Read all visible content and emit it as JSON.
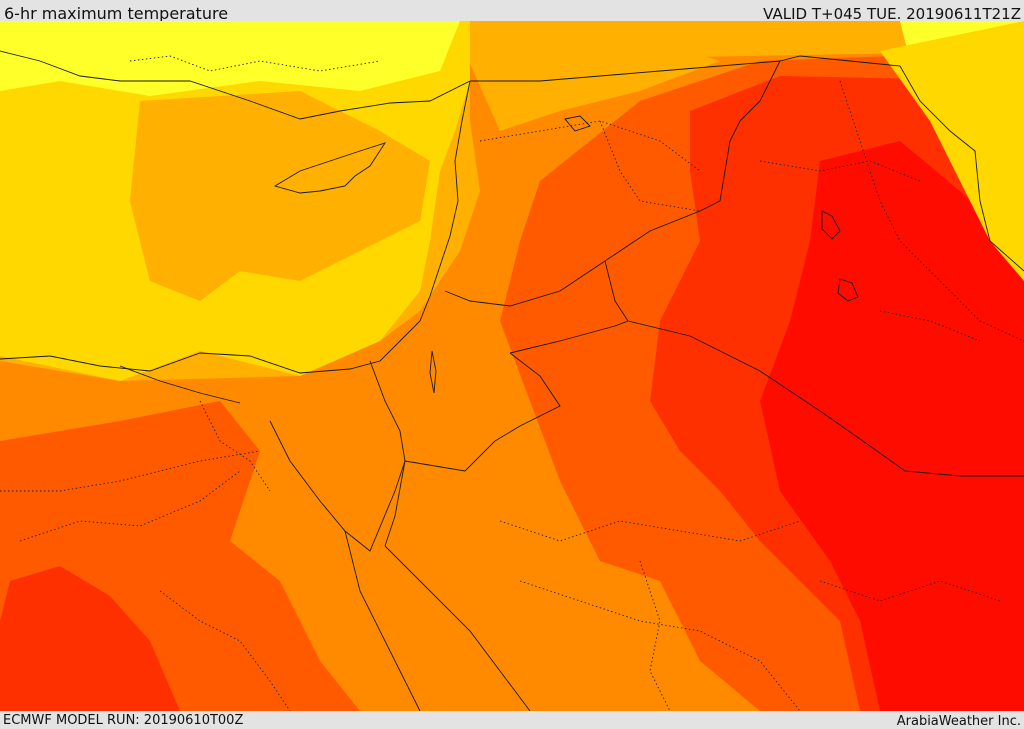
{
  "header": {
    "title": "6-hr maximum temperature",
    "valid": "VALID T+045 TUE. 20190611T21Z"
  },
  "footer": {
    "model_run": "ECMWF MODEL RUN: 20190610T00Z",
    "credit": "ArabiaWeather Inc."
  },
  "palette": {
    "lightest": "#ffff2a",
    "yellow": "#ffd800",
    "light_orange": "#ffb000",
    "orange": "#ff8a00",
    "dark_orange": "#ff5a00",
    "red": "#ff3000",
    "deep_red": "#ff0c00"
  }
}
